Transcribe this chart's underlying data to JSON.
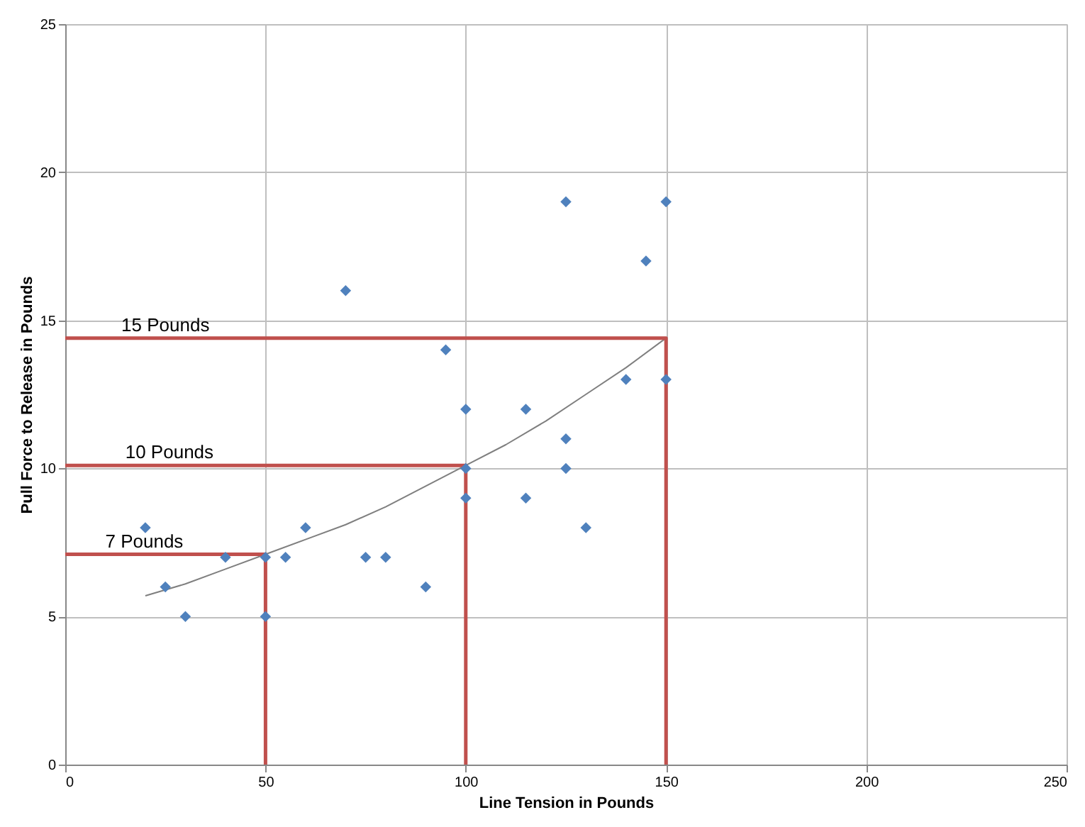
{
  "chart_data": {
    "type": "scatter",
    "xlabel": "Line Tension in Pounds",
    "ylabel": "Pull Force to Release in Pounds",
    "xlim": [
      0,
      250
    ],
    "xticks": [
      0,
      50,
      100,
      150,
      200,
      250
    ],
    "ylim": [
      0,
      25
    ],
    "yticks": [
      0,
      5,
      10,
      15,
      20,
      25
    ],
    "grid": true,
    "series": [
      {
        "marker": "diamond",
        "color": "#4f81bd",
        "x": [
          20,
          25,
          30,
          40,
          50,
          50,
          55,
          60,
          70,
          75,
          80,
          90,
          95,
          100,
          100,
          100,
          115,
          115,
          125,
          125,
          125,
          130,
          140,
          145,
          150,
          150
        ],
        "values": [
          8,
          6,
          5,
          7,
          7,
          5,
          7,
          8,
          16,
          7,
          7,
          6,
          14,
          12,
          10,
          9,
          12,
          9,
          19,
          11,
          10,
          8,
          13,
          17,
          19,
          13
        ]
      },
      {
        "type": "line",
        "marker": "none",
        "line_style": "solid",
        "color": "#7f7f7f",
        "x": [
          20,
          30,
          40,
          50,
          60,
          70,
          80,
          90,
          100,
          110,
          120,
          130,
          140,
          150
        ],
        "values": [
          5.7,
          6.1,
          6.6,
          7.1,
          7.6,
          8.1,
          8.7,
          9.4,
          10.1,
          10.8,
          11.6,
          12.5,
          13.4,
          14.4
        ]
      },
      {
        "type": "line",
        "marker": "none",
        "line_style": "solid",
        "color": "#c0504d",
        "x": [
          0,
          50,
          50
        ],
        "values": [
          7.1,
          7.1,
          0
        ]
      },
      {
        "type": "line",
        "marker": "none",
        "line_style": "solid",
        "color": "#c0504d",
        "x": [
          0,
          100,
          100
        ],
        "values": [
          10.1,
          10.1,
          0
        ]
      },
      {
        "type": "line",
        "marker": "none",
        "line_style": "solid",
        "color": "#c0504d",
        "x": [
          0,
          150,
          150
        ],
        "values": [
          14.4,
          14.4,
          0
        ]
      }
    ],
    "annotations": [
      {
        "text": "7 Pounds",
        "x": 10,
        "y": 7.1
      },
      {
        "text": "10 Pounds",
        "x": 15,
        "y": 10.1
      },
      {
        "text": "15 Pounds",
        "x": 14,
        "y": 14.4
      }
    ]
  }
}
